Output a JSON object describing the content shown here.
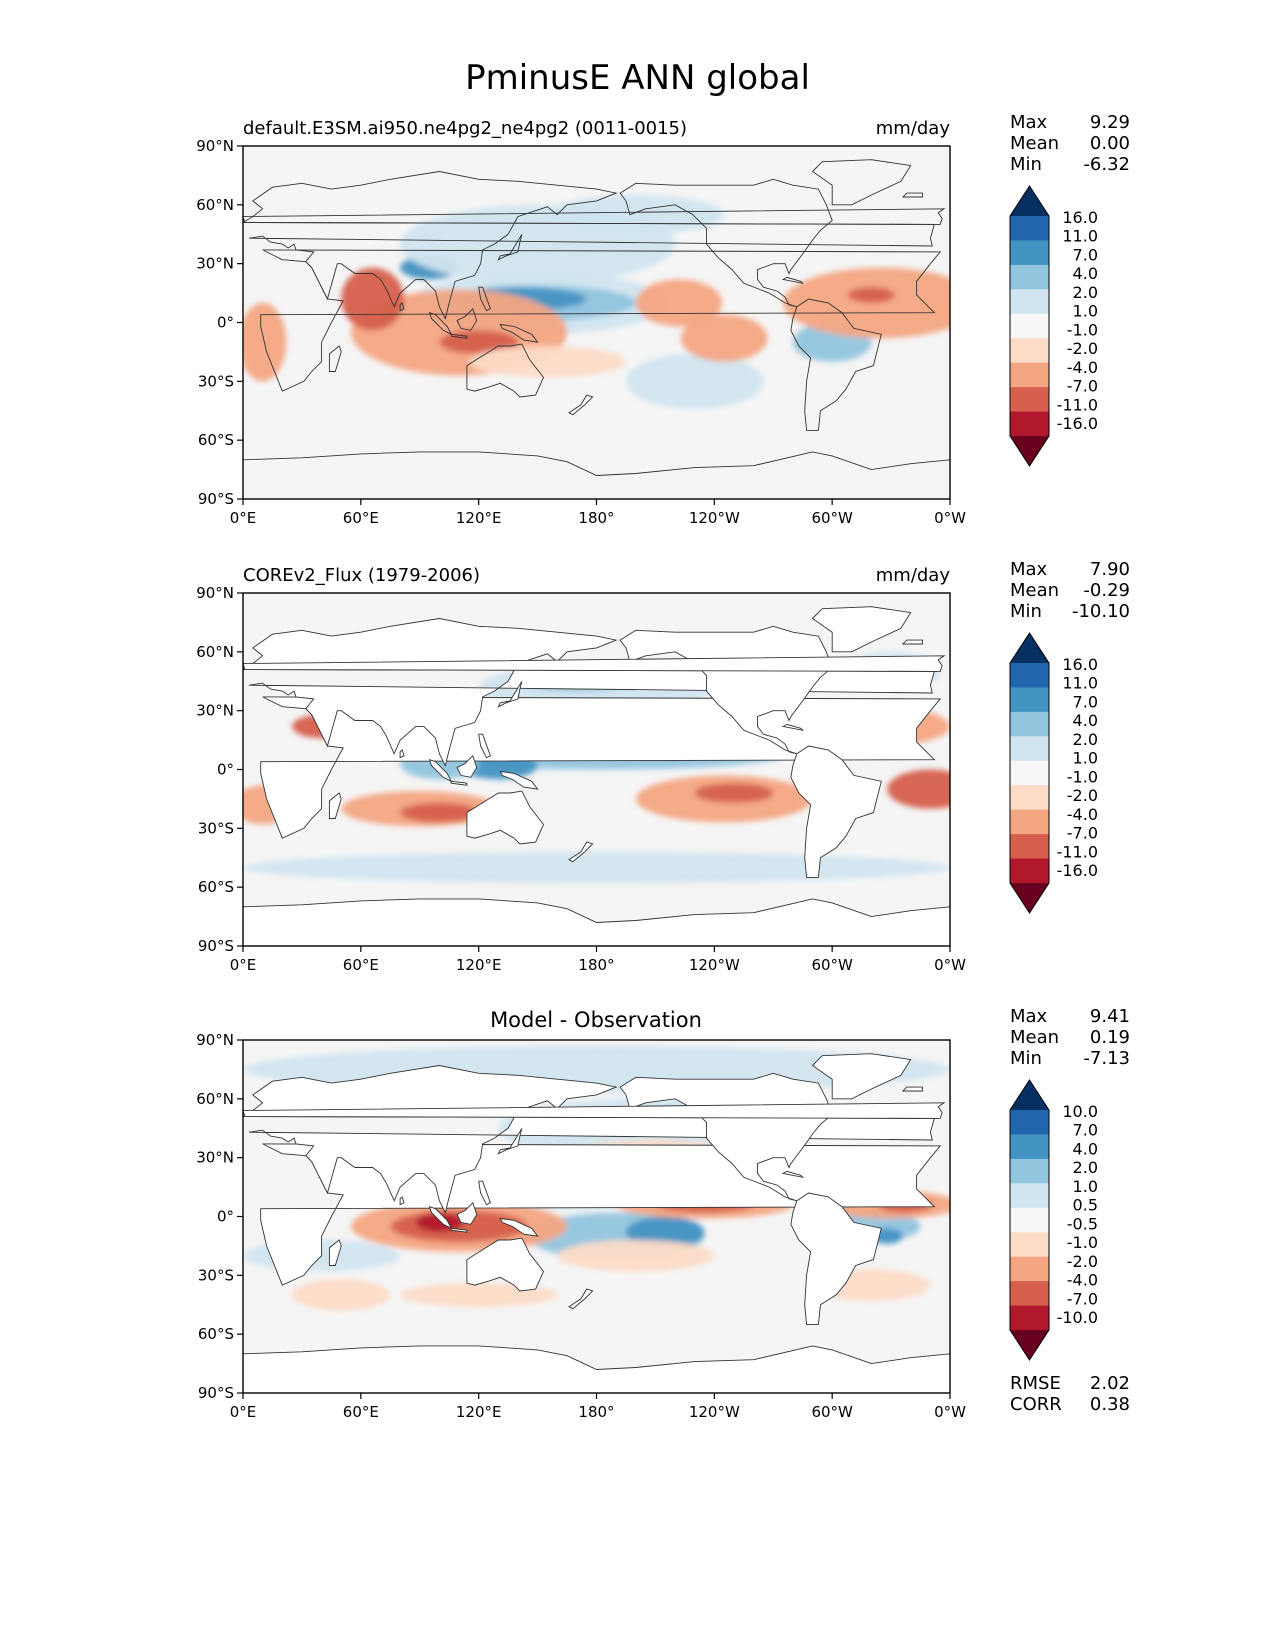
{
  "figure": {
    "title": "PminusE ANN global"
  },
  "palette": [
    "#053061",
    "#2166ac",
    "#4393c3",
    "#92c5de",
    "#d1e5f0",
    "#f7f7f7",
    "#fddbc7",
    "#f4a582",
    "#d6604d",
    "#b2182b",
    "#67001f"
  ],
  "lat_labels": [
    "90°N",
    "60°N",
    "30°N",
    "0°",
    "30°S",
    "60°S",
    "90°S"
  ],
  "lon_labels": [
    "0°E",
    "60°E",
    "120°E",
    "180°",
    "120°W",
    "60°W",
    "0°W"
  ],
  "chart_data": [
    {
      "type": "heatmap",
      "left_title": "default.E3SM.ai950.ne4pg2_ne4pg2 (0011-0015)",
      "center_title": "",
      "units": "mm/day",
      "stats": [
        {
          "label": "Max",
          "value": "9.29"
        },
        {
          "label": "Mean",
          "value": "0.00"
        },
        {
          "label": "Min",
          "value": "-6.32"
        }
      ],
      "colorbar_levels": [
        "16.0",
        "11.0",
        "7.0",
        "4.0",
        "2.0",
        "1.0",
        "-1.0",
        "-2.0",
        "-4.0",
        "-7.0",
        "-11.0",
        "-16.0"
      ],
      "xlim": [
        0,
        360
      ],
      "ylim": [
        -90,
        90
      ],
      "features": [
        {
          "lon": 95,
          "lat": 28,
          "rx": 15,
          "ry": 6,
          "level": 2
        },
        {
          "lon": 150,
          "lat": 10,
          "rx": 65,
          "ry": 16,
          "level": 4
        },
        {
          "lon": 150,
          "lat": 10,
          "rx": 50,
          "ry": 9,
          "level": 3
        },
        {
          "lon": 140,
          "lat": 12,
          "rx": 35,
          "ry": 6,
          "level": 2
        },
        {
          "lon": 150,
          "lat": 40,
          "rx": 70,
          "ry": 20,
          "level": 4
        },
        {
          "lon": 200,
          "lat": 55,
          "rx": 45,
          "ry": 10,
          "level": 4
        },
        {
          "lon": 300,
          "lat": -10,
          "rx": 20,
          "ry": 10,
          "level": 3
        },
        {
          "lon": 230,
          "lat": -30,
          "rx": 35,
          "ry": 14,
          "level": 4
        },
        {
          "lon": 110,
          "lat": -5,
          "rx": 55,
          "ry": 22,
          "level": 7
        },
        {
          "lon": 66,
          "lat": 12,
          "rx": 16,
          "ry": 16,
          "level": 8
        },
        {
          "lon": 120,
          "lat": -10,
          "rx": 20,
          "ry": 6,
          "level": 8
        },
        {
          "lon": 10,
          "lat": -10,
          "rx": 12,
          "ry": 20,
          "level": 7
        },
        {
          "lon": 222,
          "lat": 10,
          "rx": 22,
          "ry": 12,
          "level": 7
        },
        {
          "lon": 245,
          "lat": -8,
          "rx": 22,
          "ry": 12,
          "level": 7
        },
        {
          "lon": 325,
          "lat": 10,
          "rx": 50,
          "ry": 18,
          "level": 7
        },
        {
          "lon": 320,
          "lat": 14,
          "rx": 12,
          "ry": 4,
          "level": 8
        },
        {
          "lon": 155,
          "lat": -20,
          "rx": 40,
          "ry": 8,
          "level": 6
        }
      ],
      "land_masked": false
    },
    {
      "type": "heatmap",
      "left_title": "COREv2_Flux (1979-2006)",
      "center_title": "",
      "units": "mm/day",
      "stats": [
        {
          "label": "Max",
          "value": "7.90"
        },
        {
          "label": "Mean",
          "value": "-0.29"
        },
        {
          "label": "Min",
          "value": "-10.10"
        }
      ],
      "colorbar_levels": [
        "16.0",
        "11.0",
        "7.0",
        "4.0",
        "2.0",
        "1.0",
        "-1.0",
        "-2.0",
        "-4.0",
        "-7.0",
        "-11.0",
        "-16.0"
      ],
      "xlim": [
        0,
        360
      ],
      "ylim": [
        -90,
        90
      ],
      "features": [
        {
          "lon": 180,
          "lat": -50,
          "rx": 180,
          "ry": 8,
          "level": 4
        },
        {
          "lon": 180,
          "lat": 42,
          "rx": 60,
          "ry": 12,
          "level": 4
        },
        {
          "lon": 170,
          "lat": 45,
          "rx": 30,
          "ry": 5,
          "level": 3
        },
        {
          "lon": 330,
          "lat": 50,
          "rx": 25,
          "ry": 10,
          "level": 4
        },
        {
          "lon": 180,
          "lat": 7,
          "rx": 95,
          "ry": 7,
          "level": 3
        },
        {
          "lon": 130,
          "lat": 2,
          "rx": 20,
          "ry": 7,
          "level": 2
        },
        {
          "lon": 100,
          "lat": 3,
          "rx": 20,
          "ry": 8,
          "level": 3
        },
        {
          "lon": 200,
          "lat": 22,
          "rx": 55,
          "ry": 9,
          "level": 7
        },
        {
          "lon": 325,
          "lat": 22,
          "rx": 35,
          "ry": 10,
          "level": 7
        },
        {
          "lon": 90,
          "lat": -20,
          "rx": 40,
          "ry": 9,
          "level": 7
        },
        {
          "lon": 100,
          "lat": -22,
          "rx": 20,
          "ry": 5,
          "level": 8
        },
        {
          "lon": 10,
          "lat": -18,
          "rx": 15,
          "ry": 10,
          "level": 7
        },
        {
          "lon": 245,
          "lat": -15,
          "rx": 45,
          "ry": 12,
          "level": 7
        },
        {
          "lon": 250,
          "lat": -12,
          "rx": 20,
          "ry": 5,
          "level": 8
        },
        {
          "lon": 350,
          "lat": -10,
          "rx": 22,
          "ry": 10,
          "level": 8
        },
        {
          "lon": 40,
          "lat": 22,
          "rx": 15,
          "ry": 6,
          "level": 8
        }
      ],
      "land_masked": true
    },
    {
      "type": "heatmap",
      "left_title": "",
      "center_title": "Model - Observation",
      "units": "",
      "stats": [
        {
          "label": "Max",
          "value": "9.41"
        },
        {
          "label": "Mean",
          "value": "0.19"
        },
        {
          "label": "Min",
          "value": "-7.13"
        }
      ],
      "colorbar_levels": [
        "10.0",
        "7.0",
        "4.0",
        "2.0",
        "1.0",
        "0.5",
        "-0.5",
        "-1.0",
        "-2.0",
        "-4.0",
        "-7.0",
        "-10.0"
      ],
      "extra_stats": [
        {
          "label": "RMSE",
          "value": "2.02"
        },
        {
          "label": "CORR",
          "value": "0.38"
        }
      ],
      "xlim": [
        0,
        360
      ],
      "ylim": [
        -90,
        90
      ],
      "features": [
        {
          "lon": 180,
          "lat": 75,
          "rx": 180,
          "ry": 12,
          "level": 4
        },
        {
          "lon": 200,
          "lat": 45,
          "rx": 70,
          "ry": 15,
          "level": 4
        },
        {
          "lon": 160,
          "lat": 15,
          "rx": 70,
          "ry": 10,
          "level": 3
        },
        {
          "lon": 155,
          "lat": 14,
          "rx": 35,
          "ry": 6,
          "level": 2
        },
        {
          "lon": 190,
          "lat": -10,
          "rx": 45,
          "ry": 12,
          "level": 3
        },
        {
          "lon": 215,
          "lat": -8,
          "rx": 20,
          "ry": 8,
          "level": 2
        },
        {
          "lon": 40,
          "lat": -20,
          "rx": 40,
          "ry": 8,
          "level": 4
        },
        {
          "lon": 320,
          "lat": -5,
          "rx": 25,
          "ry": 8,
          "level": 3
        },
        {
          "lon": 328,
          "lat": -10,
          "rx": 8,
          "ry": 4,
          "level": 2
        },
        {
          "lon": 110,
          "lat": -5,
          "rx": 55,
          "ry": 13,
          "level": 7
        },
        {
          "lon": 110,
          "lat": -5,
          "rx": 35,
          "ry": 8,
          "level": 8
        },
        {
          "lon": 100,
          "lat": -3,
          "rx": 12,
          "ry": 5,
          "level": 9
        },
        {
          "lon": 235,
          "lat": 6,
          "rx": 45,
          "ry": 7,
          "level": 7
        },
        {
          "lon": 235,
          "lat": 6,
          "rx": 25,
          "ry": 4,
          "level": 8
        },
        {
          "lon": 330,
          "lat": 6,
          "rx": 35,
          "ry": 7,
          "level": 7
        },
        {
          "lon": 337,
          "lat": 6,
          "rx": 14,
          "ry": 4,
          "level": 8
        },
        {
          "lon": 200,
          "lat": -20,
          "rx": 40,
          "ry": 8,
          "level": 6
        },
        {
          "lon": 50,
          "lat": -40,
          "rx": 25,
          "ry": 8,
          "level": 6
        },
        {
          "lon": 120,
          "lat": -40,
          "rx": 40,
          "ry": 6,
          "level": 6
        },
        {
          "lon": 320,
          "lat": -35,
          "rx": 30,
          "ry": 8,
          "level": 6
        },
        {
          "lon": 210,
          "lat": 35,
          "rx": 35,
          "ry": 4,
          "level": 6
        }
      ],
      "land_masked": true
    }
  ]
}
